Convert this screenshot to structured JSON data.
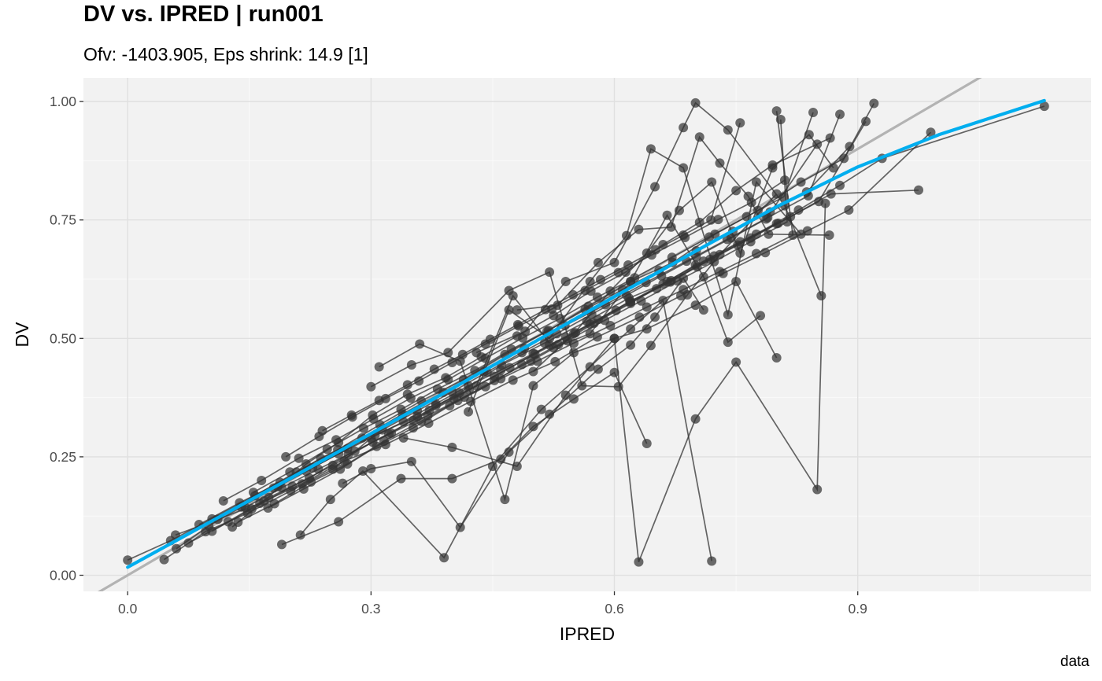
{
  "chart_data": {
    "type": "scatter",
    "title": "DV vs. IPRED | run001",
    "subtitle": "Ofv: -1403.905, Eps shrink: 14.9 [1]",
    "caption": "data",
    "xlabel": "IPRED",
    "ylabel": "DV",
    "xlim": [
      -0.0545,
      1.1875
    ],
    "ylim": [
      -0.034,
      1.05
    ],
    "x_ticks": [
      0.0,
      0.3,
      0.6,
      0.9
    ],
    "x_tick_labels": [
      "0.0",
      "0.3",
      "0.6",
      "0.9"
    ],
    "y_ticks": [
      0.0,
      0.25,
      0.5,
      0.75,
      1.0
    ],
    "y_tick_labels": [
      "0.00",
      "0.25",
      "0.50",
      "0.75",
      "1.00"
    ],
    "grid": true,
    "colors": {
      "panel": "#f2f2f2",
      "grid": "#e0e0e0",
      "points": "#333333",
      "identity_line": "#b3b3b3",
      "smooth_line": "#00aeef"
    },
    "identity_line": {
      "slope": 1,
      "intercept": 0
    },
    "smooth": {
      "x": [
        0.0,
        0.1,
        0.2,
        0.3,
        0.4,
        0.5,
        0.6,
        0.7,
        0.8,
        0.9,
        1.0,
        1.13
      ],
      "y": [
        0.017,
        0.111,
        0.204,
        0.299,
        0.394,
        0.491,
        0.588,
        0.684,
        0.778,
        0.862,
        0.93,
        1.002
      ]
    },
    "series": [
      {
        "x": [
          0.0,
          0.053,
          0.104,
          0.157,
          0.208,
          0.259,
          0.311,
          0.362,
          0.414,
          0.465,
          0.517,
          0.568,
          0.62,
          0.672,
          0.724,
          0.777,
          0.83,
          0.883,
          0.92
        ],
        "y": [
          0.032,
          0.073,
          0.119,
          0.168,
          0.218,
          0.265,
          0.318,
          0.368,
          0.413,
          0.466,
          0.515,
          0.568,
          0.62,
          0.66,
          0.72,
          0.77,
          0.83,
          0.88,
          0.996
        ]
      },
      {
        "x": [
          0.045,
          0.096,
          0.148,
          0.201,
          0.253,
          0.305,
          0.357,
          0.409,
          0.461,
          0.514,
          0.566,
          0.618,
          0.67,
          0.723,
          0.775,
          0.827,
          0.878,
          0.93,
          1.13
        ],
        "y": [
          0.033,
          0.092,
          0.131,
          0.178,
          0.224,
          0.296,
          0.335,
          0.385,
          0.444,
          0.49,
          0.536,
          0.585,
          0.622,
          0.674,
          0.72,
          0.771,
          0.823,
          0.88,
          0.99
        ]
      },
      {
        "x": [
          0.059,
          0.111,
          0.163,
          0.215,
          0.267,
          0.318,
          0.371,
          0.423,
          0.475,
          0.527,
          0.579,
          0.631,
          0.682,
          0.734,
          0.786,
          0.838,
          0.889,
          0.99
        ],
        "y": [
          0.085,
          0.118,
          0.152,
          0.193,
          0.241,
          0.276,
          0.321,
          0.367,
          0.412,
          0.451,
          0.503,
          0.545,
          0.59,
          0.637,
          0.681,
          0.727,
          0.771,
          0.935
        ]
      },
      {
        "x": [
          0.075,
          0.124,
          0.174,
          0.224,
          0.272,
          0.322,
          0.372,
          0.421,
          0.471,
          0.52,
          0.57,
          0.619,
          0.669,
          0.718,
          0.768,
          0.817,
          0.867,
          0.975
        ],
        "y": [
          0.068,
          0.113,
          0.164,
          0.205,
          0.255,
          0.298,
          0.348,
          0.392,
          0.438,
          0.486,
          0.53,
          0.578,
          0.619,
          0.667,
          0.712,
          0.757,
          0.805,
          0.813
        ]
      },
      {
        "x": [
          0.088,
          0.138,
          0.188,
          0.238,
          0.289,
          0.339,
          0.389,
          0.439,
          0.489,
          0.539,
          0.589,
          0.639,
          0.689,
          0.739,
          0.789,
          0.839,
          0.878
        ],
        "y": [
          0.107,
          0.153,
          0.196,
          0.247,
          0.29,
          0.34,
          0.386,
          0.43,
          0.479,
          0.527,
          0.571,
          0.618,
          0.663,
          0.709,
          0.755,
          0.801,
          0.973
        ]
      },
      {
        "x": [
          0.104,
          0.153,
          0.203,
          0.253,
          0.302,
          0.352,
          0.402,
          0.452,
          0.502,
          0.552,
          0.602,
          0.652,
          0.702,
          0.752,
          0.802,
          0.852,
          0.91
        ],
        "y": [
          0.093,
          0.14,
          0.188,
          0.232,
          0.281,
          0.327,
          0.373,
          0.42,
          0.467,
          0.512,
          0.559,
          0.605,
          0.651,
          0.697,
          0.743,
          0.789,
          0.958
        ]
      },
      {
        "x": [
          0.129,
          0.168,
          0.22,
          0.26,
          0.302,
          0.345,
          0.392,
          0.436,
          0.48,
          0.525,
          0.571,
          0.614,
          0.66,
          0.705,
          0.75,
          0.795,
          0.866
        ],
        "y": [
          0.102,
          0.157,
          0.235,
          0.28,
          0.338,
          0.382,
          0.417,
          0.461,
          0.505,
          0.548,
          0.6,
          0.64,
          0.698,
          0.745,
          0.812,
          0.866,
          0.923
        ]
      },
      {
        "x": [
          0.118,
          0.165,
          0.211,
          0.257,
          0.303,
          0.349,
          0.395,
          0.441,
          0.487,
          0.533,
          0.579,
          0.625,
          0.671,
          0.717,
          0.763,
          0.809,
          0.845
        ],
        "y": [
          0.157,
          0.2,
          0.247,
          0.286,
          0.33,
          0.374,
          0.413,
          0.458,
          0.501,
          0.542,
          0.587,
          0.628,
          0.671,
          0.714,
          0.757,
          0.799,
          0.977
        ]
      },
      {
        "x": [
          0.136,
          0.181,
          0.226,
          0.271,
          0.316,
          0.362,
          0.407,
          0.452,
          0.497,
          0.542,
          0.588,
          0.633,
          0.678,
          0.723,
          0.768,
          0.813,
          0.805
        ],
        "y": [
          0.112,
          0.151,
          0.197,
          0.235,
          0.283,
          0.325,
          0.369,
          0.411,
          0.452,
          0.495,
          0.538,
          0.579,
          0.621,
          0.662,
          0.704,
          0.746,
          0.962
        ]
      },
      {
        "x": [
          0.145,
          0.19,
          0.235,
          0.28,
          0.325,
          0.37,
          0.415,
          0.46,
          0.505,
          0.55,
          0.595,
          0.64,
          0.685,
          0.73,
          0.775,
          0.82,
          0.8
        ],
        "y": [
          0.143,
          0.185,
          0.224,
          0.262,
          0.3,
          0.337,
          0.376,
          0.415,
          0.452,
          0.49,
          0.527,
          0.566,
          0.603,
          0.641,
          0.679,
          0.718,
          0.98
        ]
      },
      {
        "x": [
          0.155,
          0.2,
          0.246,
          0.291,
          0.337,
          0.382,
          0.428,
          0.473,
          0.519,
          0.564,
          0.61,
          0.655,
          0.701,
          0.746,
          0.792,
          0.837,
          0.89
        ],
        "y": [
          0.175,
          0.218,
          0.266,
          0.31,
          0.35,
          0.393,
          0.432,
          0.477,
          0.517,
          0.561,
          0.603,
          0.643,
          0.685,
          0.726,
          0.767,
          0.809,
          0.905
        ]
      },
      {
        "x": [
          0.173,
          0.217,
          0.262,
          0.307,
          0.352,
          0.397,
          0.441,
          0.486,
          0.531,
          0.575,
          0.62,
          0.665,
          0.71,
          0.755,
          0.8
        ],
        "y": [
          0.142,
          0.182,
          0.224,
          0.272,
          0.311,
          0.358,
          0.398,
          0.445,
          0.487,
          0.532,
          0.574,
          0.62,
          0.663,
          0.704,
          0.742
        ]
      },
      {
        "x": [
          0.185,
          0.228,
          0.271,
          0.314,
          0.357,
          0.4,
          0.443,
          0.486,
          0.529,
          0.572,
          0.615,
          0.658,
          0.701,
          0.744,
          0.787,
          0.85
        ],
        "y": [
          0.187,
          0.227,
          0.267,
          0.307,
          0.347,
          0.387,
          0.429,
          0.47,
          0.51,
          0.551,
          0.591,
          0.632,
          0.672,
          0.712,
          0.752,
          0.91
        ]
      },
      {
        "x": [
          0.195,
          0.236,
          0.277,
          0.318,
          0.359,
          0.4,
          0.441,
          0.482,
          0.523,
          0.564,
          0.605,
          0.646,
          0.687,
          0.728,
          0.769,
          0.81
        ],
        "y": [
          0.25,
          0.293,
          0.334,
          0.373,
          0.41,
          0.449,
          0.488,
          0.526,
          0.562,
          0.601,
          0.639,
          0.676,
          0.713,
          0.751,
          0.787,
          0.834
        ]
      },
      {
        "x": [
          0.24,
          0.276,
          0.31,
          0.345,
          0.378,
          0.413,
          0.447,
          0.481,
          0.515,
          0.549,
          0.583,
          0.617,
          0.651,
          0.685,
          0.719,
          0.755
        ],
        "y": [
          0.305,
          0.338,
          0.369,
          0.402,
          0.435,
          0.466,
          0.498,
          0.529,
          0.561,
          0.592,
          0.624,
          0.655,
          0.687,
          0.718,
          0.75,
          0.955
        ]
      },
      {
        "x": [
          0.06,
          0.1,
          0.14,
          0.18,
          0.22,
          0.26,
          0.3,
          0.34,
          0.38,
          0.42,
          0.46,
          0.5,
          0.54,
          0.58,
          0.62,
          0.66,
          0.7
        ],
        "y": [
          0.056,
          0.104,
          0.144,
          0.184,
          0.22,
          0.256,
          0.29,
          0.324,
          0.362,
          0.4,
          0.433,
          0.468,
          0.503,
          0.54,
          0.578,
          0.615,
          0.655
        ]
      },
      {
        "x": [
          0.19,
          0.26,
          0.337,
          0.4,
          0.46,
          0.5,
          0.55,
          0.6,
          0.64
        ],
        "y": [
          0.065,
          0.113,
          0.204,
          0.204,
          0.245,
          0.314,
          0.372,
          0.428,
          0.278
        ]
      },
      {
        "x": [
          0.213,
          0.25,
          0.29,
          0.39,
          0.45,
          0.51,
          0.57,
          0.62,
          0.66,
          0.72
        ],
        "y": [
          0.085,
          0.16,
          0.22,
          0.037,
          0.23,
          0.35,
          0.44,
          0.52,
          0.58,
          0.03
        ]
      },
      {
        "x": [
          0.265,
          0.3,
          0.35,
          0.41,
          0.47,
          0.52,
          0.58,
          0.62,
          0.65,
          0.685,
          0.71
        ],
        "y": [
          0.194,
          0.225,
          0.24,
          0.101,
          0.26,
          0.34,
          0.435,
          0.486,
          0.545,
          0.627,
          0.56
        ]
      },
      {
        "x": [
          0.31,
          0.36,
          0.41,
          0.465,
          0.5,
          0.55,
          0.6,
          0.64,
          0.7,
          0.75,
          0.8
        ],
        "y": [
          0.44,
          0.488,
          0.452,
          0.16,
          0.4,
          0.47,
          0.5,
          0.52,
          0.57,
          0.62,
          0.459
        ]
      },
      {
        "x": [
          0.3,
          0.35,
          0.395,
          0.47,
          0.52,
          0.56,
          0.605,
          0.645,
          0.69,
          0.73,
          0.8
        ],
        "y": [
          0.398,
          0.444,
          0.47,
          0.601,
          0.64,
          0.4,
          0.398,
          0.485,
          0.592,
          0.677,
          0.805
        ]
      },
      {
        "x": [
          0.34,
          0.4,
          0.48,
          0.54,
          0.6,
          0.63,
          0.7,
          0.75,
          0.85,
          0.86
        ],
        "y": [
          0.29,
          0.27,
          0.23,
          0.38,
          0.5,
          0.028,
          0.33,
          0.45,
          0.181,
          0.785
        ]
      },
      {
        "x": [
          0.38,
          0.43,
          0.475,
          0.525,
          0.57,
          0.62,
          0.665,
          0.71,
          0.74,
          0.78
        ],
        "y": [
          0.358,
          0.4,
          0.59,
          0.48,
          0.51,
          0.62,
          0.76,
          0.63,
          0.492,
          0.548
        ]
      },
      {
        "x": [
          0.42,
          0.47,
          0.52,
          0.57,
          0.615,
          0.645,
          0.685,
          0.74,
          0.775,
          0.83
        ],
        "y": [
          0.345,
          0.56,
          0.5,
          0.62,
          0.717,
          0.9,
          0.86,
          0.55,
          0.83,
          0.72
        ]
      },
      {
        "x": [
          0.43,
          0.49,
          0.54,
          0.6,
          0.65,
          0.685,
          0.7,
          0.74,
          0.81,
          0.855
        ],
        "y": [
          0.47,
          0.515,
          0.62,
          0.66,
          0.82,
          0.945,
          0.997,
          0.94,
          0.78,
          0.59
        ]
      },
      {
        "x": [
          0.48,
          0.53,
          0.58,
          0.63,
          0.67,
          0.705,
          0.73,
          0.765,
          0.79,
          0.865
        ],
        "y": [
          0.56,
          0.57,
          0.66,
          0.73,
          0.735,
          0.925,
          0.87,
          0.8,
          0.72,
          0.718
        ]
      },
      {
        "x": [
          0.5,
          0.55,
          0.595,
          0.64,
          0.68,
          0.72,
          0.755,
          0.795,
          0.84,
          0.87
        ],
        "y": [
          0.43,
          0.51,
          0.6,
          0.68,
          0.77,
          0.83,
          0.68,
          0.86,
          0.93,
          0.86
        ]
      }
    ]
  }
}
